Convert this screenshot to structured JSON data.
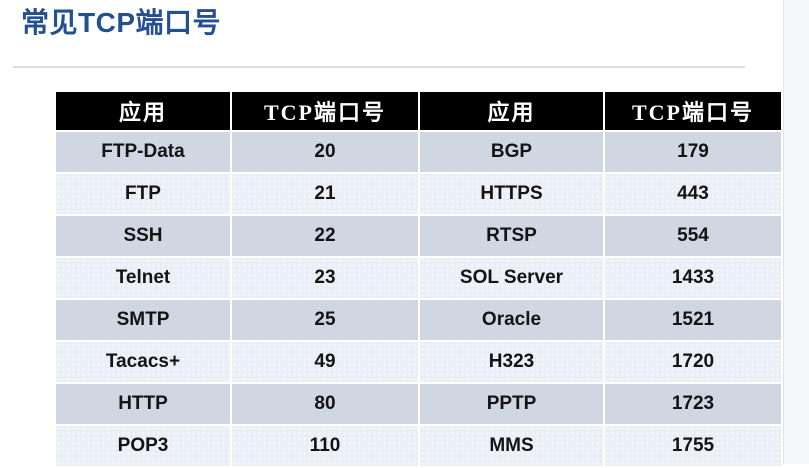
{
  "page": {
    "title": "常见TCP端口号"
  },
  "table": {
    "headers": [
      "应用",
      "TCP端口号",
      "应用",
      "TCP端口号"
    ],
    "rows": [
      [
        "FTP-Data",
        "20",
        "BGP",
        "179"
      ],
      [
        "FTP",
        "21",
        "HTTPS",
        "443"
      ],
      [
        "SSH",
        "22",
        "RTSP",
        "554"
      ],
      [
        "Telnet",
        "23",
        "SOL Server",
        "1433"
      ],
      [
        "SMTP",
        "25",
        "Oracle",
        "1521"
      ],
      [
        "Tacacs+",
        "49",
        "H323",
        "1720"
      ],
      [
        "HTTP",
        "80",
        "PPTP",
        "1723"
      ],
      [
        "POP3",
        "110",
        "MMS",
        "1755"
      ]
    ]
  },
  "colors": {
    "title_color": "#25508f",
    "header_bg": "#000000",
    "header_text": "#ffffff",
    "row_dark": "#d0d7e3",
    "row_light": "#eaeef7",
    "divider": "#dadde4",
    "side_strip": "#f4f6fa"
  }
}
